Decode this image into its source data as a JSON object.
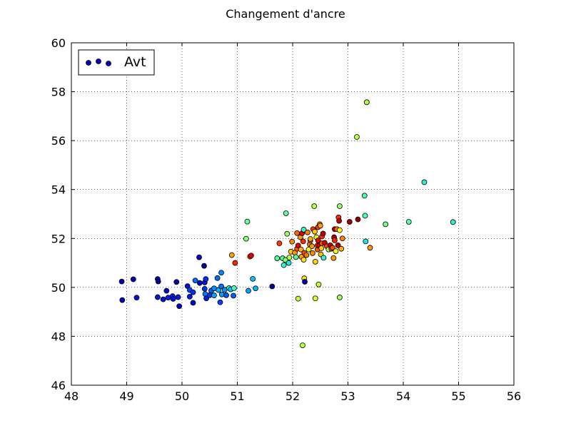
{
  "chart_data": {
    "type": "scatter",
    "title": "Changement d'ancre",
    "xlim": [
      48,
      56
    ],
    "ylim": [
      46,
      60
    ],
    "x_ticks": [
      48,
      49,
      50,
      51,
      52,
      53,
      54,
      55,
      56
    ],
    "y_ticks": [
      46,
      48,
      50,
      52,
      54,
      56,
      58,
      60
    ],
    "grid": true,
    "legend": {
      "position": "top-left",
      "entries": [
        "Avt"
      ]
    },
    "series": [
      {
        "name": "Avt",
        "points": [
          {
            "x": 48.91,
            "y": 50.24,
            "color": "#0000a8"
          },
          {
            "x": 48.92,
            "y": 49.48,
            "color": "#0000b8"
          },
          {
            "x": 49.12,
            "y": 50.33,
            "color": "#0000b4"
          },
          {
            "x": 49.18,
            "y": 49.58,
            "color": "#0010d8"
          },
          {
            "x": 49.56,
            "y": 50.34,
            "color": "#0000b0"
          },
          {
            "x": 49.57,
            "y": 50.24,
            "color": "#0000a4"
          },
          {
            "x": 49.56,
            "y": 49.6,
            "color": "#0018e0"
          },
          {
            "x": 49.66,
            "y": 49.51,
            "color": "#0010d4"
          },
          {
            "x": 49.72,
            "y": 49.86,
            "color": "#0008c8"
          },
          {
            "x": 49.75,
            "y": 49.58,
            "color": "#0020e8"
          },
          {
            "x": 49.83,
            "y": 49.64,
            "color": "#0024ec"
          },
          {
            "x": 49.84,
            "y": 49.53,
            "color": "#0014dc"
          },
          {
            "x": 49.9,
            "y": 50.22,
            "color": "#0000a0"
          },
          {
            "x": 49.93,
            "y": 49.6,
            "color": "#0020e8"
          },
          {
            "x": 49.95,
            "y": 49.23,
            "color": "#0004c0"
          },
          {
            "x": 50.1,
            "y": 50.05,
            "color": "#0010d8"
          },
          {
            "x": 50.14,
            "y": 49.89,
            "color": "#0040ff"
          },
          {
            "x": 50.14,
            "y": 49.62,
            "color": "#0018e0"
          },
          {
            "x": 50.2,
            "y": 49.37,
            "color": "#0008cc"
          },
          {
            "x": 50.2,
            "y": 49.8,
            "color": "#0030f4"
          },
          {
            "x": 50.24,
            "y": 50.28,
            "color": "#0070ff"
          },
          {
            "x": 50.31,
            "y": 51.23,
            "color": "#0008c8"
          },
          {
            "x": 50.32,
            "y": 50.18,
            "color": "#0008cc"
          },
          {
            "x": 50.4,
            "y": 50.88,
            "color": "#0000b0"
          },
          {
            "x": 50.41,
            "y": 50.2,
            "color": "#0018e0"
          },
          {
            "x": 50.41,
            "y": 49.94,
            "color": "#0030f4"
          },
          {
            "x": 50.43,
            "y": 50.34,
            "color": "#0030f0"
          },
          {
            "x": 50.42,
            "y": 49.73,
            "color": "#0080ff"
          },
          {
            "x": 50.44,
            "y": 49.55,
            "color": "#0020e8"
          },
          {
            "x": 50.5,
            "y": 49.68,
            "color": "#0038f8"
          },
          {
            "x": 50.53,
            "y": 49.87,
            "color": "#0060ff"
          },
          {
            "x": 50.58,
            "y": 49.96,
            "color": "#0090ff"
          },
          {
            "x": 50.58,
            "y": 49.67,
            "color": "#00a8ff"
          },
          {
            "x": 50.64,
            "y": 50.38,
            "color": "#0070ff"
          },
          {
            "x": 50.66,
            "y": 49.89,
            "color": "#00b0ff"
          },
          {
            "x": 50.69,
            "y": 49.39,
            "color": "#0040ff"
          },
          {
            "x": 50.71,
            "y": 50.6,
            "color": "#0088ff"
          },
          {
            "x": 50.71,
            "y": 50.04,
            "color": "#0070ff"
          },
          {
            "x": 50.72,
            "y": 49.71,
            "color": "#00a0ff"
          },
          {
            "x": 50.77,
            "y": 49.9,
            "color": "#0098ff"
          },
          {
            "x": 50.8,
            "y": 49.68,
            "color": "#0058ff"
          },
          {
            "x": 50.85,
            "y": 49.97,
            "color": "#20f0d8"
          },
          {
            "x": 50.88,
            "y": 49.92,
            "color": "#00c4ff"
          },
          {
            "x": 50.93,
            "y": 49.66,
            "color": "#0060ff"
          },
          {
            "x": 50.94,
            "y": 49.97,
            "color": "#40ffb8"
          },
          {
            "x": 50.9,
            "y": 51.32,
            "color": "#ffa000"
          },
          {
            "x": 50.96,
            "y": 51.0,
            "color": "#ff2000"
          },
          {
            "x": 51.16,
            "y": 51.99,
            "color": "#80ff78"
          },
          {
            "x": 51.18,
            "y": 52.69,
            "color": "#60ff98"
          },
          {
            "x": 51.2,
            "y": 49.86,
            "color": "#00a0ff"
          },
          {
            "x": 51.23,
            "y": 51.26,
            "color": "#ff3000"
          },
          {
            "x": 51.25,
            "y": 51.3,
            "color": "#e80000"
          },
          {
            "x": 51.28,
            "y": 50.35,
            "color": "#00c8ff"
          },
          {
            "x": 51.33,
            "y": 49.96,
            "color": "#00b8ff"
          },
          {
            "x": 51.63,
            "y": 50.04,
            "color": "#000090"
          },
          {
            "x": 51.72,
            "y": 51.19,
            "color": "#50ffa8"
          },
          {
            "x": 51.76,
            "y": 51.8,
            "color": "#ff3800"
          },
          {
            "x": 51.82,
            "y": 51.19,
            "color": "#50ffa8"
          },
          {
            "x": 51.84,
            "y": 50.91,
            "color": "#30f8c8"
          },
          {
            "x": 51.87,
            "y": 51.12,
            "color": "#88ff70"
          },
          {
            "x": 51.88,
            "y": 53.03,
            "color": "#60ff98"
          },
          {
            "x": 51.9,
            "y": 52.19,
            "color": "#98ff60"
          },
          {
            "x": 51.93,
            "y": 51.0,
            "color": "#20e8e0"
          },
          {
            "x": 51.94,
            "y": 51.22,
            "color": "#b0ff48"
          },
          {
            "x": 51.97,
            "y": 51.46,
            "color": "#ffc800"
          },
          {
            "x": 51.99,
            "y": 51.87,
            "color": "#ff8800"
          },
          {
            "x": 52.04,
            "y": 51.42,
            "color": "#ff9800"
          },
          {
            "x": 52.06,
            "y": 51.24,
            "color": "#58ffa0"
          },
          {
            "x": 52.08,
            "y": 51.58,
            "color": "#ff5800"
          },
          {
            "x": 52.08,
            "y": 52.22,
            "color": "#ff6000"
          },
          {
            "x": 52.1,
            "y": 51.71,
            "color": "#e80000"
          },
          {
            "x": 52.1,
            "y": 49.54,
            "color": "#c8ff30"
          },
          {
            "x": 52.14,
            "y": 52.05,
            "color": "#ff9800"
          },
          {
            "x": 52.15,
            "y": 51.55,
            "color": "#ffb000"
          },
          {
            "x": 52.16,
            "y": 51.25,
            "color": "#ffa000"
          },
          {
            "x": 52.17,
            "y": 52.21,
            "color": "#e00000"
          },
          {
            "x": 52.18,
            "y": 47.63,
            "color": "#b0ff48"
          },
          {
            "x": 52.19,
            "y": 51.88,
            "color": "#ff2800"
          },
          {
            "x": 52.2,
            "y": 51.13,
            "color": "#ffe000"
          },
          {
            "x": 52.2,
            "y": 52.36,
            "color": "#30f8c8"
          },
          {
            "x": 52.21,
            "y": 51.41,
            "color": "#ff4000"
          },
          {
            "x": 52.21,
            "y": 50.37,
            "color": "#ffe800"
          },
          {
            "x": 52.22,
            "y": 50.23,
            "color": "#0000c0"
          },
          {
            "x": 52.25,
            "y": 51.32,
            "color": "#ff7800"
          },
          {
            "x": 52.27,
            "y": 52.25,
            "color": "#ff8000"
          },
          {
            "x": 52.29,
            "y": 51.55,
            "color": "#f0ff10"
          },
          {
            "x": 52.31,
            "y": 51.76,
            "color": "#ff7000"
          },
          {
            "x": 52.32,
            "y": 51.92,
            "color": "#ff4800"
          },
          {
            "x": 52.32,
            "y": 51.98,
            "color": "#ffa800"
          },
          {
            "x": 52.35,
            "y": 51.68,
            "color": "#ff9800"
          },
          {
            "x": 52.36,
            "y": 51.4,
            "color": "#ff8800"
          },
          {
            "x": 52.37,
            "y": 52.38,
            "color": "#ff3000"
          },
          {
            "x": 52.39,
            "y": 53.32,
            "color": "#b0ff48"
          },
          {
            "x": 52.4,
            "y": 52.28,
            "color": "#ffc800"
          },
          {
            "x": 52.41,
            "y": 51.05,
            "color": "#ffd800"
          },
          {
            "x": 52.41,
            "y": 49.55,
            "color": "#d8ff28"
          },
          {
            "x": 52.43,
            "y": 52.05,
            "color": "#f8ff00"
          },
          {
            "x": 52.45,
            "y": 51.55,
            "color": "#ff5000"
          },
          {
            "x": 52.45,
            "y": 51.72,
            "color": "#ff2800"
          },
          {
            "x": 52.46,
            "y": 51.92,
            "color": "#e00000"
          },
          {
            "x": 52.46,
            "y": 52.46,
            "color": "#ff3800"
          },
          {
            "x": 52.47,
            "y": 50.12,
            "color": "#c0ff38"
          },
          {
            "x": 52.48,
            "y": 51.72,
            "color": "#c80000"
          },
          {
            "x": 52.49,
            "y": 52.58,
            "color": "#ff7800"
          },
          {
            "x": 52.5,
            "y": 52.52,
            "color": "#ffa000"
          },
          {
            "x": 52.51,
            "y": 51.35,
            "color": "#ffb800"
          },
          {
            "x": 52.52,
            "y": 51.6,
            "color": "#ffd000"
          },
          {
            "x": 52.53,
            "y": 51.8,
            "color": "#ff5000"
          },
          {
            "x": 52.53,
            "y": 52.08,
            "color": "#ff3000"
          },
          {
            "x": 52.55,
            "y": 52.2,
            "color": "#b80000"
          },
          {
            "x": 52.56,
            "y": 51.21,
            "color": "#30f0d0"
          },
          {
            "x": 52.58,
            "y": 51.82,
            "color": "#d00000"
          },
          {
            "x": 52.62,
            "y": 51.68,
            "color": "#ff4000"
          },
          {
            "x": 52.65,
            "y": 51.55,
            "color": "#a0ff58"
          },
          {
            "x": 52.68,
            "y": 51.72,
            "color": "#c00000"
          },
          {
            "x": 52.7,
            "y": 51.58,
            "color": "#ff5800"
          },
          {
            "x": 52.72,
            "y": 51.62,
            "color": "#ff4800"
          },
          {
            "x": 52.74,
            "y": 51.2,
            "color": "#ff9800"
          },
          {
            "x": 52.75,
            "y": 52.05,
            "color": "#a80000"
          },
          {
            "x": 52.76,
            "y": 51.92,
            "color": "#ff2000"
          },
          {
            "x": 52.76,
            "y": 52.38,
            "color": "#b80000"
          },
          {
            "x": 52.78,
            "y": 51.48,
            "color": "#f0ff10"
          },
          {
            "x": 52.8,
            "y": 52.38,
            "color": "#ff6800"
          },
          {
            "x": 52.82,
            "y": 51.72,
            "color": "#b00000"
          },
          {
            "x": 52.83,
            "y": 52.86,
            "color": "#ff3000"
          },
          {
            "x": 52.84,
            "y": 52.72,
            "color": "#c00000"
          },
          {
            "x": 52.85,
            "y": 53.32,
            "color": "#98ff60"
          },
          {
            "x": 52.85,
            "y": 52.34,
            "color": "#f8ff00"
          },
          {
            "x": 52.85,
            "y": 49.59,
            "color": "#a0ff58"
          },
          {
            "x": 52.88,
            "y": 51.58,
            "color": "#ffb000"
          },
          {
            "x": 52.9,
            "y": 52.0,
            "color": "#ff8000"
          },
          {
            "x": 53.03,
            "y": 52.68,
            "color": "#a00000"
          },
          {
            "x": 53.16,
            "y": 56.15,
            "color": "#b8ff40"
          },
          {
            "x": 53.18,
            "y": 52.78,
            "color": "#900000"
          },
          {
            "x": 53.3,
            "y": 53.75,
            "color": "#48ffb0"
          },
          {
            "x": 53.31,
            "y": 52.93,
            "color": "#50ffa8"
          },
          {
            "x": 53.32,
            "y": 51.88,
            "color": "#20e0e8"
          },
          {
            "x": 53.34,
            "y": 57.57,
            "color": "#a8ff50"
          },
          {
            "x": 53.4,
            "y": 51.62,
            "color": "#ff9800"
          },
          {
            "x": 53.68,
            "y": 52.58,
            "color": "#70ff88"
          },
          {
            "x": 54.1,
            "y": 52.68,
            "color": "#58ffa0"
          },
          {
            "x": 54.38,
            "y": 54.3,
            "color": "#30f0d0"
          },
          {
            "x": 54.9,
            "y": 52.67,
            "color": "#30f0d0"
          }
        ]
      }
    ]
  }
}
